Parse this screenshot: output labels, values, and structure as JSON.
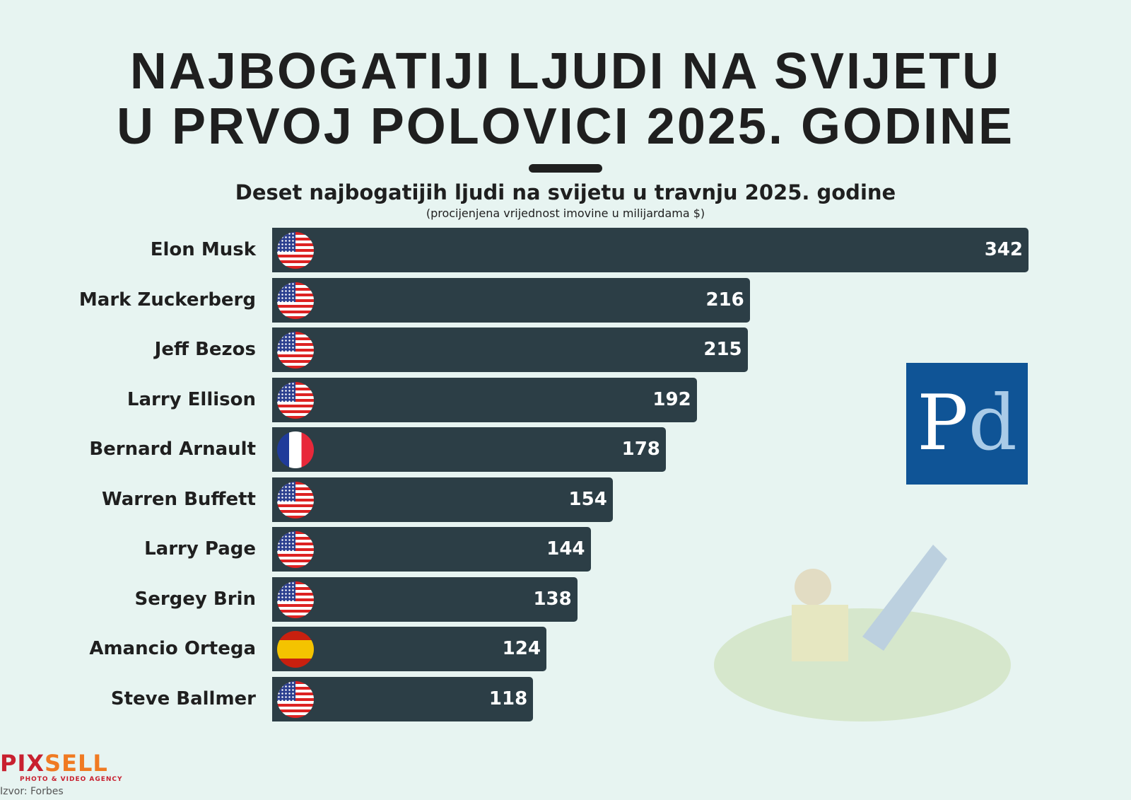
{
  "title": {
    "line1": "NAJBOGATIJI LJUDI NA SVIJETU",
    "line2": "U PRVOJ POLOVICI 2025. GODINE"
  },
  "subtitle": "Deset najbogatijih ljudi na svijetu u travnju 2025. godine",
  "note": "(procijenjena vrijednost imovine u milijardama $)",
  "logo": {
    "pd": "P",
    "pd2": "d"
  },
  "footer": {
    "brand1": "PIX",
    "brand2": "SELL",
    "tagline": "PHOTO & VIDEO AGENCY",
    "source": "Izvor: Forbes"
  },
  "colors": {
    "bar": "#2c3e46",
    "background": "#e7f4f1",
    "logo": "#0f5496"
  },
  "chart_data": {
    "type": "bar",
    "orientation": "horizontal",
    "title": "Deset najbogatijih ljudi na svijetu u travnju 2025. godine",
    "ylabel": "(procijenjena vrijednost imovine u milijardama $)",
    "categories": [
      "Elon Musk",
      "Mark Zuckerberg",
      "Jeff Bezos",
      "Larry Ellison",
      "Bernard Arnault",
      "Warren Buffett",
      "Larry Page",
      "Sergey Brin",
      "Amancio Ortega",
      "Steve Ballmer"
    ],
    "values": [
      342,
      216,
      215,
      192,
      178,
      154,
      144,
      138,
      124,
      118
    ],
    "flags": [
      "us",
      "us",
      "us",
      "us",
      "fr",
      "us",
      "us",
      "us",
      "es",
      "us"
    ]
  }
}
